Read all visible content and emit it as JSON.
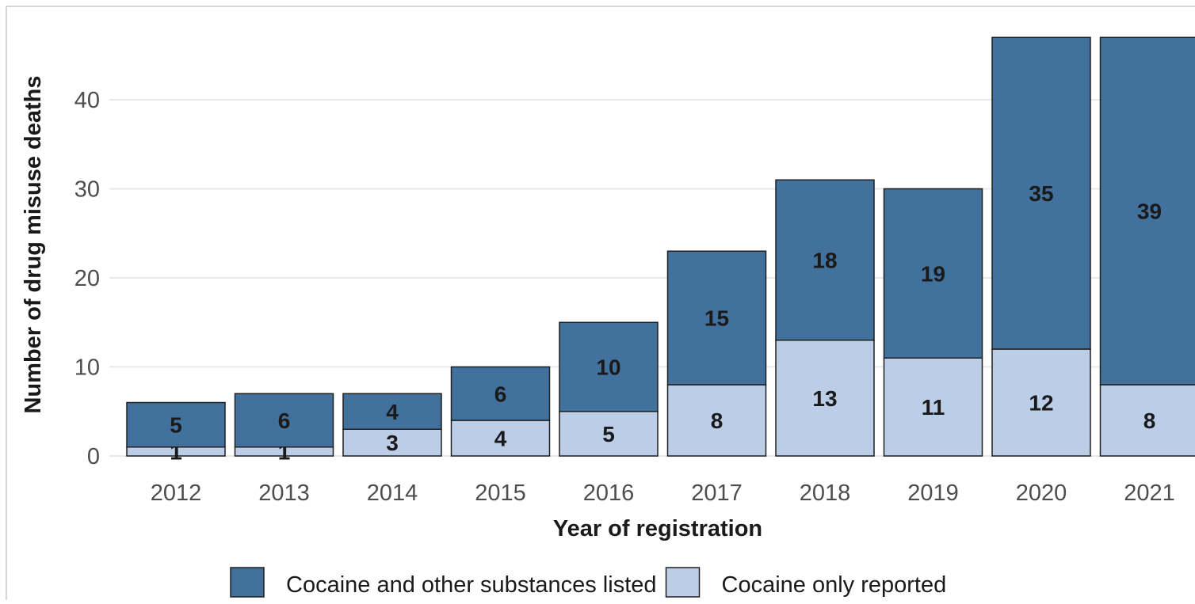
{
  "chart_data": {
    "type": "bar",
    "stacked": true,
    "categories": [
      "2012",
      "2013",
      "2014",
      "2015",
      "2016",
      "2017",
      "2018",
      "2019",
      "2020",
      "2021"
    ],
    "series": [
      {
        "name": "Cocaine only reported",
        "color": "#bccde8",
        "values": [
          1,
          1,
          3,
          4,
          5,
          8,
          13,
          11,
          12,
          8
        ]
      },
      {
        "name": "Cocaine and other substances listed",
        "color": "#41719c",
        "values": [
          5,
          6,
          4,
          6,
          10,
          15,
          18,
          19,
          35,
          39
        ]
      }
    ],
    "xlabel": "Year of registration",
    "ylabel": "Number of drug misuse deaths",
    "ylim": [
      0,
      47
    ],
    "yticks": [
      0,
      10,
      20,
      30,
      40
    ],
    "grid": "horizontal",
    "legend": {
      "placement": "bottom",
      "order": [
        "Cocaine and other substances listed",
        "Cocaine only reported"
      ]
    }
  }
}
